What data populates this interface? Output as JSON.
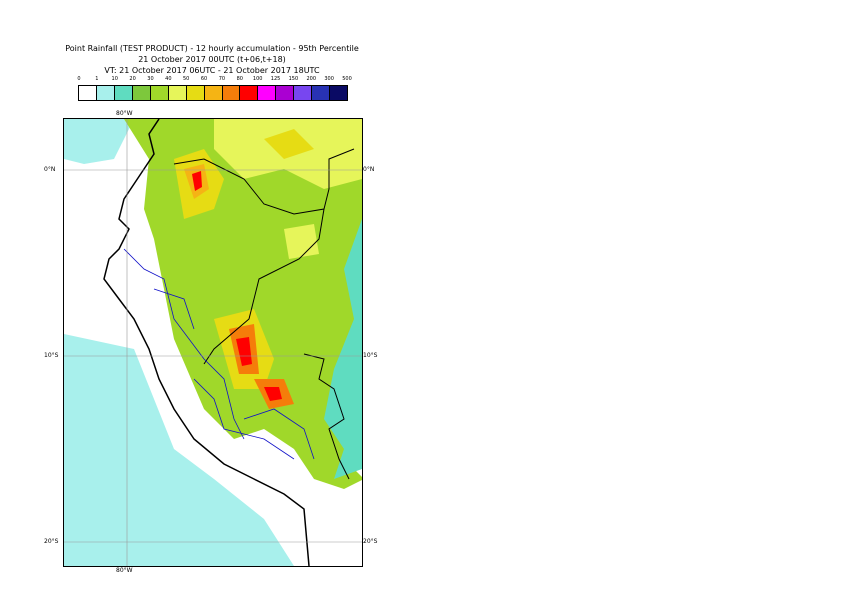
{
  "title_lines": [
    "Point Rainfall (TEST PRODUCT) - 12 hourly accumulation - 95th Percentile",
    "21 October 2017 00UTC (t+06,t+18)",
    "VT: 21 October 2017 06UTC - 21 October 2017 18UTC"
  ],
  "legend": {
    "ticks": [
      "0",
      "1",
      "10",
      "20",
      "30",
      "40",
      "50",
      "60",
      "70",
      "80",
      "100",
      "125",
      "150",
      "200",
      "300",
      "500"
    ],
    "colors": [
      "#ffffff",
      "#a8f0ec",
      "#5fdcc0",
      "#7dc83c",
      "#a0d82a",
      "#e6f55a",
      "#e6dc14",
      "#f5b414",
      "#f57d0a",
      "#ff0000",
      "#ff00ff",
      "#aa00d2",
      "#7846f0",
      "#2832b4",
      "#0a0a64"
    ]
  },
  "map": {
    "lon_labels": {
      "top": "80°W",
      "bottom": "80°W"
    },
    "lat_labels": [
      "0°N",
      "10°S",
      "20°S"
    ]
  }
}
